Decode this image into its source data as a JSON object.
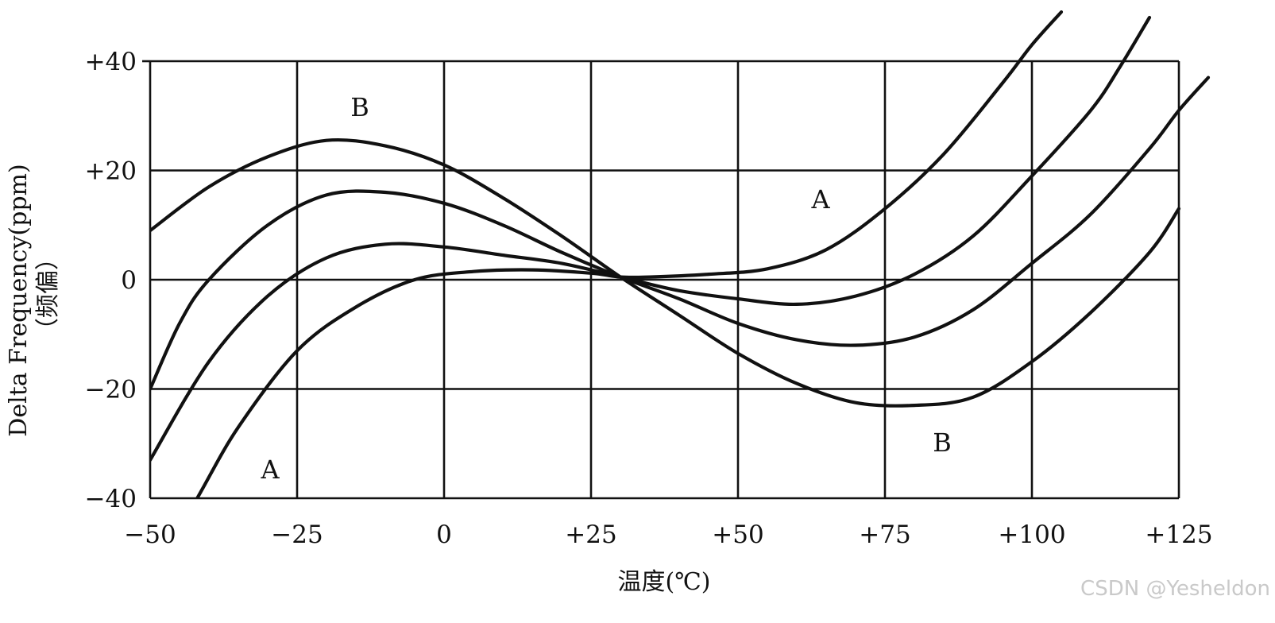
{
  "chart_data": {
    "type": "line",
    "xlabel": "温度(℃)",
    "ylabel": "Delta Frequency(ppm)",
    "ylabel2": "（频偏）",
    "xlim": [
      -50,
      125
    ],
    "ylim": [
      -40,
      40
    ],
    "x_ticks": [
      "−50",
      "−25",
      "0",
      "+25",
      "+50",
      "+75",
      "+100",
      "+125"
    ],
    "y_ticks": [
      "+40",
      "+20",
      "0",
      "−20",
      "−40"
    ],
    "x_tick_values": [
      -50,
      -25,
      0,
      25,
      50,
      75,
      100,
      125
    ],
    "y_tick_values": [
      40,
      20,
      0,
      -20,
      -40
    ],
    "grid": true,
    "series": [
      {
        "x": [
          -50,
          -42,
          -35,
          -25,
          -15,
          -5,
          5,
          15,
          25,
          30,
          35,
          45,
          55,
          65,
          75,
          85,
          95,
          100,
          105
        ],
        "y": [
          -55,
          -40,
          -27,
          -13,
          -5,
          0,
          1.5,
          1.8,
          1.2,
          0.5,
          0.5,
          1,
          2,
          5.5,
          13,
          23,
          36,
          43,
          49
        ]
      },
      {
        "x": [
          -50,
          -40,
          -30,
          -20,
          -10,
          0,
          10,
          20,
          30,
          40,
          50,
          60,
          70,
          80,
          90,
          100,
          110,
          115,
          120
        ],
        "y": [
          -33,
          -15,
          -3,
          4,
          6.5,
          6,
          4.5,
          3,
          0.5,
          -2,
          -3.5,
          -4.5,
          -3,
          1,
          8,
          19,
          31,
          39,
          48
        ]
      },
      {
        "x": [
          -50,
          -45,
          -40,
          -30,
          -20,
          -10,
          0,
          10,
          20,
          30,
          40,
          50,
          60,
          70,
          80,
          90,
          100,
          110,
          120,
          125,
          130
        ],
        "y": [
          -20,
          -8,
          0,
          10,
          15.5,
          16,
          14,
          10,
          5,
          0.5,
          -3.5,
          -8,
          -11,
          -12,
          -10.5,
          -5.5,
          3,
          12,
          24,
          31,
          37
        ]
      },
      {
        "x": [
          -50,
          -40,
          -30,
          -20,
          -10,
          0,
          10,
          20,
          30,
          40,
          50,
          60,
          70,
          80,
          90,
          100,
          110,
          120,
          125
        ],
        "y": [
          9,
          17,
          22.5,
          25.5,
          24.5,
          21,
          15,
          8,
          0.5,
          -6.5,
          -13.5,
          -19,
          -22.5,
          -23,
          -21.5,
          -15,
          -6,
          5,
          13
        ]
      }
    ],
    "annotations": [
      "B",
      "A",
      "A",
      "B"
    ]
  },
  "watermark": "CSDN @Yesheldon"
}
